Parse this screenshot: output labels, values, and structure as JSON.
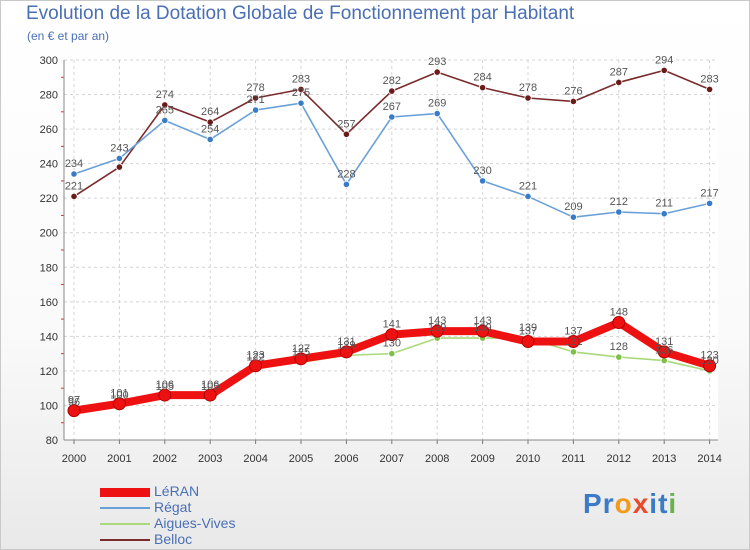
{
  "title": "Evolution de la Dotation Globale de Fonctionnement par Habitant",
  "subtitle": "(en € et par an)",
  "brand": {
    "text": "Proxiti",
    "letters": [
      "P",
      "r",
      "o",
      "x",
      "i",
      "t",
      "i"
    ],
    "colors": [
      "#3a7bc8",
      "#3a7bc8",
      "#f29a1a",
      "#e84a2a",
      "#3a7bc8",
      "#3a7bc8",
      "#6ab04c"
    ]
  },
  "chart_data": {
    "type": "line",
    "title": "Evolution de la Dotation Globale de Fonctionnement par Habitant",
    "ylabel": "(en € et par an)",
    "xlabel": "",
    "x": [
      "2000",
      "2001",
      "2002",
      "2003",
      "2004",
      "2005",
      "2006",
      "2007",
      "2008",
      "2009",
      "2010",
      "2011",
      "2012",
      "2013",
      "2014"
    ],
    "ylim": [
      80,
      300
    ],
    "yticks": [
      "80",
      "100",
      "120",
      "140",
      "160",
      "180",
      "200",
      "220",
      "240",
      "260",
      "280",
      "300"
    ],
    "grid": true,
    "series": [
      {
        "name": "Belloc",
        "color": "#7a2b2b",
        "marker": "#6b1a1a",
        "values": [
          221,
          238,
          274,
          264,
          278,
          283,
          257,
          282,
          293,
          284,
          278,
          276,
          287,
          294,
          283
        ],
        "labels": [
          "221",
          "",
          "274",
          "264",
          "278",
          "283",
          "257",
          "282",
          "293",
          "284",
          "278",
          "276",
          "287",
          "294",
          "283"
        ]
      },
      {
        "name": "Régat",
        "color": "#6aa0d8",
        "marker": "#3a7bc8",
        "values": [
          234,
          243,
          265,
          254,
          271,
          275,
          228,
          267,
          269,
          230,
          221,
          209,
          212,
          211,
          217
        ],
        "labels": [
          "234",
          "243",
          "265",
          "254",
          "271",
          "275",
          "228",
          "267",
          "269",
          "230",
          "221",
          "209",
          "212",
          "211",
          "217"
        ]
      },
      {
        "name": "Aigues-Vives",
        "color": "#a9d97a",
        "marker": "#7ec04a",
        "values": [
          96,
          100,
          105,
          105,
          122,
          125,
          129,
          130,
          139,
          139,
          139,
          131,
          128,
          126,
          120
        ],
        "labels": [
          "96",
          "100",
          "105",
          "105",
          "122",
          "125",
          "129",
          "130",
          "139",
          "139",
          "139",
          "131",
          "128",
          "126",
          "120"
        ]
      },
      {
        "name": "LéRAN",
        "color": "#ee1111",
        "marker": "#ee1111",
        "values": [
          97,
          101,
          106,
          106,
          123,
          127,
          131,
          141,
          143,
          143,
          137,
          137,
          148,
          131,
          123
        ],
        "labels": [
          "97",
          "101",
          "106",
          "106",
          "123",
          "127",
          "131",
          "141",
          "143",
          "143",
          "137",
          "137",
          "148",
          "131",
          "123"
        ]
      }
    ],
    "legend": {
      "position": "bottom-left",
      "items": [
        {
          "name": "LéRAN",
          "color": "#ee1111"
        },
        {
          "name": "Régat",
          "color": "#6aa0d8"
        },
        {
          "name": "Aigues-Vives",
          "color": "#a9d97a"
        },
        {
          "name": "Belloc",
          "color": "#7a2b2b"
        }
      ]
    }
  }
}
